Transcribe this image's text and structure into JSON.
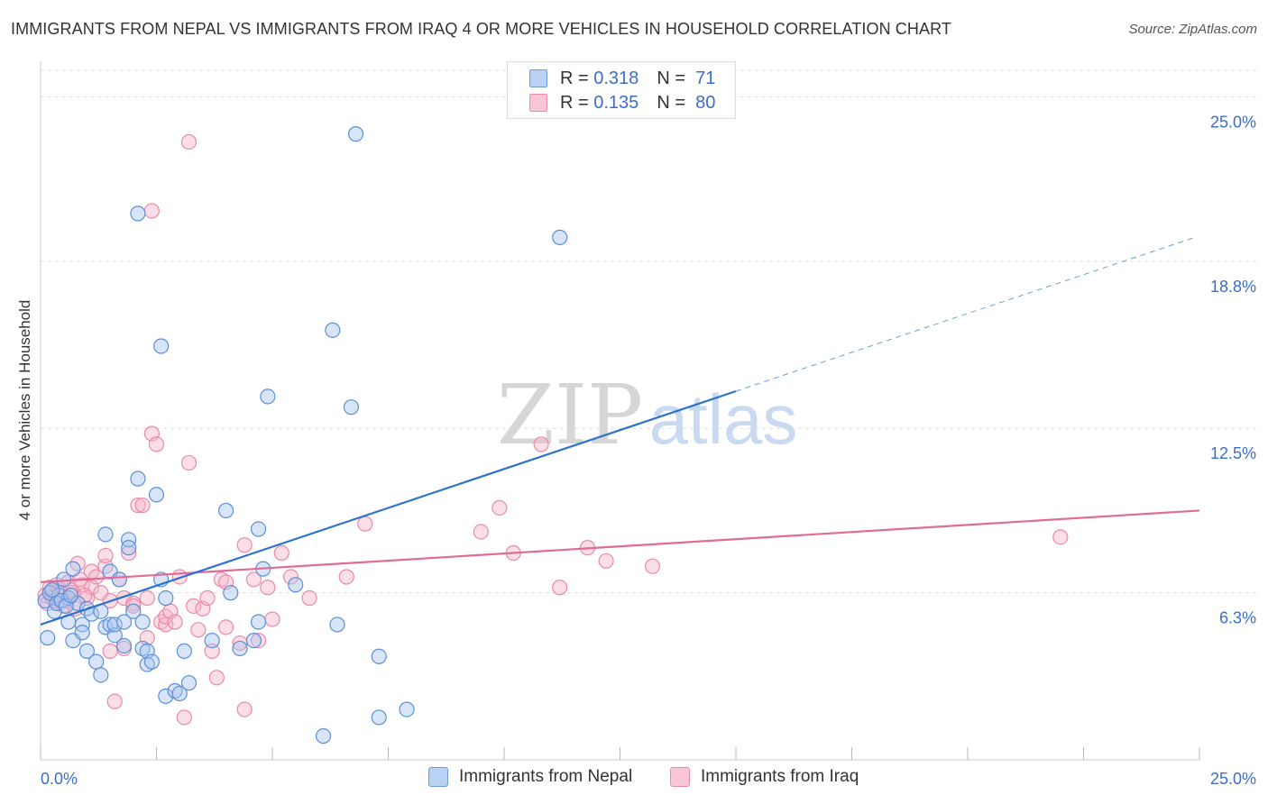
{
  "title": "IMMIGRANTS FROM NEPAL VS IMMIGRANTS FROM IRAQ 4 OR MORE VEHICLES IN HOUSEHOLD CORRELATION CHART",
  "source": "Source: ZipAtlas.com",
  "watermark": {
    "zip": "ZIP",
    "atlas": "atlas"
  },
  "legend": {
    "nepal": {
      "r_label": "R =",
      "r_value": "0.318",
      "n_label": "N =",
      "n_value": "71"
    },
    "iraq": {
      "r_label": "R =",
      "r_value": "0.135",
      "n_label": "N =",
      "n_value": "80"
    }
  },
  "bottom_legend": {
    "nepal": "Immigrants from Nepal",
    "iraq": "Immigrants from Iraq"
  },
  "colors": {
    "nepal_fill": "#a9c6f0",
    "nepal_stroke": "#5b8fd6",
    "nepal_line": "#2f72cc",
    "iraq_fill": "#f6b6ca",
    "iraq_stroke": "#e98aa9",
    "iraq_line": "#e06b96",
    "tick_color": "#3a6ec8",
    "grid": "#dddddd"
  },
  "chart_data": {
    "type": "scatter",
    "xlabel": "",
    "ylabel": "4 or more Vehicles in Household",
    "xlim": [
      0,
      25
    ],
    "ylim": [
      0,
      26
    ],
    "x_tick_labels": [
      "0.0%",
      "25.0%"
    ],
    "y_ticks": [
      6.3,
      12.5,
      18.8,
      25.0
    ],
    "y_tick_labels": [
      "6.3%",
      "12.5%",
      "18.8%",
      "25.0%"
    ],
    "series": [
      {
        "name": "Immigrants from Nepal",
        "R": 0.318,
        "N": 71,
        "points": [
          [
            0.1,
            6.0
          ],
          [
            0.2,
            6.3
          ],
          [
            0.3,
            5.6
          ],
          [
            0.4,
            6.2
          ],
          [
            0.5,
            6.8
          ],
          [
            0.6,
            6.1
          ],
          [
            0.6,
            5.2
          ],
          [
            0.7,
            7.2
          ],
          [
            0.7,
            4.5
          ],
          [
            0.8,
            5.9
          ],
          [
            0.9,
            5.1
          ],
          [
            0.9,
            4.8
          ],
          [
            1.0,
            5.7
          ],
          [
            1.0,
            4.1
          ],
          [
            1.1,
            5.5
          ],
          [
            1.2,
            3.7
          ],
          [
            1.3,
            5.6
          ],
          [
            1.3,
            3.2
          ],
          [
            1.4,
            5.0
          ],
          [
            1.4,
            8.5
          ],
          [
            1.5,
            5.1
          ],
          [
            1.5,
            7.1
          ],
          [
            1.6,
            4.7
          ],
          [
            1.6,
            5.1
          ],
          [
            1.7,
            6.8
          ],
          [
            1.8,
            4.3
          ],
          [
            1.8,
            5.2
          ],
          [
            1.9,
            8.3
          ],
          [
            1.9,
            8.0
          ],
          [
            2.0,
            5.6
          ],
          [
            2.1,
            10.6
          ],
          [
            2.1,
            20.6
          ],
          [
            2.2,
            4.2
          ],
          [
            2.2,
            5.2
          ],
          [
            2.3,
            3.6
          ],
          [
            2.3,
            4.1
          ],
          [
            2.4,
            3.7
          ],
          [
            2.5,
            10.0
          ],
          [
            2.6,
            6.8
          ],
          [
            2.6,
            15.6
          ],
          [
            2.7,
            6.1
          ],
          [
            2.7,
            2.4
          ],
          [
            2.9,
            2.6
          ],
          [
            3.0,
            2.5
          ],
          [
            3.1,
            4.1
          ],
          [
            3.2,
            2.9
          ],
          [
            3.7,
            4.5
          ],
          [
            4.0,
            9.4
          ],
          [
            4.1,
            6.3
          ],
          [
            4.3,
            4.2
          ],
          [
            4.6,
            4.5
          ],
          [
            4.7,
            8.7
          ],
          [
            4.7,
            5.2
          ],
          [
            4.8,
            7.2
          ],
          [
            4.9,
            13.7
          ],
          [
            5.5,
            6.6
          ],
          [
            6.1,
            0.9
          ],
          [
            6.3,
            16.2
          ],
          [
            6.4,
            5.1
          ],
          [
            6.7,
            13.3
          ],
          [
            6.8,
            23.6
          ],
          [
            7.3,
            3.9
          ],
          [
            7.3,
            1.6
          ],
          [
            7.9,
            1.9
          ],
          [
            11.2,
            19.7
          ],
          [
            0.15,
            4.6
          ],
          [
            0.25,
            6.4
          ],
          [
            0.35,
            5.9
          ],
          [
            0.45,
            6.0
          ],
          [
            0.55,
            5.8
          ],
          [
            0.65,
            6.2
          ]
        ],
        "trend": {
          "x": [
            0.0,
            15.0
          ],
          "y": [
            5.1,
            13.9
          ]
        },
        "trend_extension": {
          "x": [
            15.0,
            24.9
          ],
          "y": [
            13.9,
            19.7
          ]
        }
      },
      {
        "name": "Immigrants from Iraq",
        "R": 0.135,
        "N": 80,
        "points": [
          [
            0.1,
            6.2
          ],
          [
            0.2,
            6.5
          ],
          [
            0.3,
            6.0
          ],
          [
            0.4,
            6.4
          ],
          [
            0.5,
            5.8
          ],
          [
            0.6,
            6.7
          ],
          [
            0.7,
            6.3
          ],
          [
            0.8,
            7.4
          ],
          [
            0.9,
            6.6
          ],
          [
            1.0,
            6.1
          ],
          [
            1.1,
            7.1
          ],
          [
            1.1,
            6.5
          ],
          [
            1.2,
            6.9
          ],
          [
            1.3,
            6.3
          ],
          [
            1.4,
            7.3
          ],
          [
            1.4,
            7.7
          ],
          [
            1.5,
            6.0
          ],
          [
            1.5,
            4.1
          ],
          [
            1.6,
            2.2
          ],
          [
            1.7,
            6.8
          ],
          [
            1.8,
            6.1
          ],
          [
            1.8,
            4.2
          ],
          [
            1.9,
            7.8
          ],
          [
            2.0,
            5.9
          ],
          [
            2.0,
            5.8
          ],
          [
            2.1,
            9.6
          ],
          [
            2.2,
            9.6
          ],
          [
            2.3,
            4.6
          ],
          [
            2.3,
            6.1
          ],
          [
            2.4,
            12.3
          ],
          [
            2.4,
            20.7
          ],
          [
            2.5,
            11.9
          ],
          [
            2.6,
            5.2
          ],
          [
            2.7,
            5.1
          ],
          [
            2.7,
            5.4
          ],
          [
            2.8,
            5.6
          ],
          [
            2.9,
            5.2
          ],
          [
            3.0,
            6.9
          ],
          [
            3.1,
            1.6
          ],
          [
            3.2,
            11.2
          ],
          [
            3.2,
            23.3
          ],
          [
            3.3,
            5.8
          ],
          [
            3.4,
            4.9
          ],
          [
            3.5,
            5.7
          ],
          [
            3.6,
            6.1
          ],
          [
            3.7,
            4.1
          ],
          [
            3.8,
            3.1
          ],
          [
            3.9,
            6.8
          ],
          [
            4.0,
            5.0
          ],
          [
            4.0,
            6.7
          ],
          [
            4.3,
            4.4
          ],
          [
            4.4,
            1.9
          ],
          [
            4.4,
            8.1
          ],
          [
            4.6,
            6.8
          ],
          [
            4.7,
            4.5
          ],
          [
            4.9,
            6.5
          ],
          [
            5.0,
            5.3
          ],
          [
            5.2,
            7.8
          ],
          [
            5.4,
            6.9
          ],
          [
            5.8,
            6.1
          ],
          [
            6.6,
            6.9
          ],
          [
            7.0,
            8.9
          ],
          [
            9.5,
            8.6
          ],
          [
            9.9,
            9.5
          ],
          [
            10.2,
            7.8
          ],
          [
            10.8,
            11.9
          ],
          [
            11.2,
            6.5
          ],
          [
            11.8,
            8.0
          ],
          [
            12.2,
            7.5
          ],
          [
            13.2,
            7.3
          ],
          [
            22.0,
            8.4
          ],
          [
            0.15,
            5.9
          ],
          [
            0.25,
            6.1
          ],
          [
            0.35,
            6.6
          ],
          [
            0.45,
            6.3
          ],
          [
            0.55,
            6.0
          ],
          [
            0.65,
            6.4
          ],
          [
            0.75,
            5.7
          ],
          [
            0.85,
            6.8
          ],
          [
            0.95,
            6.2
          ]
        ],
        "trend": {
          "x": [
            0.0,
            25.0
          ],
          "y": [
            6.7,
            9.4
          ]
        }
      }
    ]
  }
}
